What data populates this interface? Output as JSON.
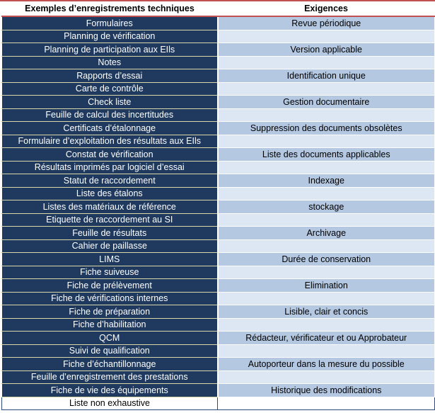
{
  "headers": {
    "left": "Exemples d’enregistrements techniques",
    "right": "Exigences"
  },
  "rows": [
    {
      "left": "Formulaires",
      "right": "Revue périodique"
    },
    {
      "left": "Planning de vérification",
      "right": ""
    },
    {
      "left": "Planning de participation aux EIls",
      "right": "Version applicable"
    },
    {
      "left": "Notes",
      "right": ""
    },
    {
      "left": "Rapports d’essai",
      "right": "Identification unique"
    },
    {
      "left": "Carte de contrôle",
      "right": ""
    },
    {
      "left": "Check liste",
      "right": "Gestion documentaire"
    },
    {
      "left": "Feuille de calcul des incertitudes",
      "right": ""
    },
    {
      "left": "Certificats d’étalonnage",
      "right": "Suppression des documents obsolètes"
    },
    {
      "left": "Formulaire d’exploitation des résultats aux EIls",
      "right": ""
    },
    {
      "left": "Constat de vérification",
      "right": "Liste des documents applicables"
    },
    {
      "left": "Résultats imprimés par logiciel d’essai",
      "right": ""
    },
    {
      "left": "Statut de raccordement",
      "right": "Indexage"
    },
    {
      "left": "Liste des étalons",
      "right": ""
    },
    {
      "left": "Listes des matériaux de référence",
      "right": "stockage"
    },
    {
      "left": "Etiquette de raccordement au SI",
      "right": ""
    },
    {
      "left": "Feuille de résultats",
      "right": "Archivage"
    },
    {
      "left": "Cahier de paillasse",
      "right": ""
    },
    {
      "left": "LIMS",
      "right": "Durée de conservation"
    },
    {
      "left": "Fiche suiveuse",
      "right": ""
    },
    {
      "left": "Fiche de prélèvement",
      "right": "Elimination"
    },
    {
      "left": "Fiche de vérifications internes",
      "right": ""
    },
    {
      "left": "Fiche de préparation",
      "right": "Lisible, clair et concis"
    },
    {
      "left": "Fiche d’habilitation",
      "right": ""
    },
    {
      "left": "QCM",
      "right": "Rédacteur, vérificateur et ou Approbateur"
    },
    {
      "left": "Suivi de qualification",
      "right": ""
    },
    {
      "left": "Fiche d’échantillonnage",
      "right": "Autoporteur dans la mesure du possible"
    },
    {
      "left": "Feuille d’enregistrement des prestations",
      "right": ""
    },
    {
      "left": "Fiche de vie des équipements",
      "right": "Historique des modifications"
    },
    {
      "left": "Liste non exhaustive",
      "right": ""
    }
  ],
  "colors": {
    "header_rule": "#c0504d",
    "left_cell_bg": "#1f3a5e",
    "right_cell_dark": "#b4c8e2",
    "right_cell_light": "#dde7f3"
  }
}
